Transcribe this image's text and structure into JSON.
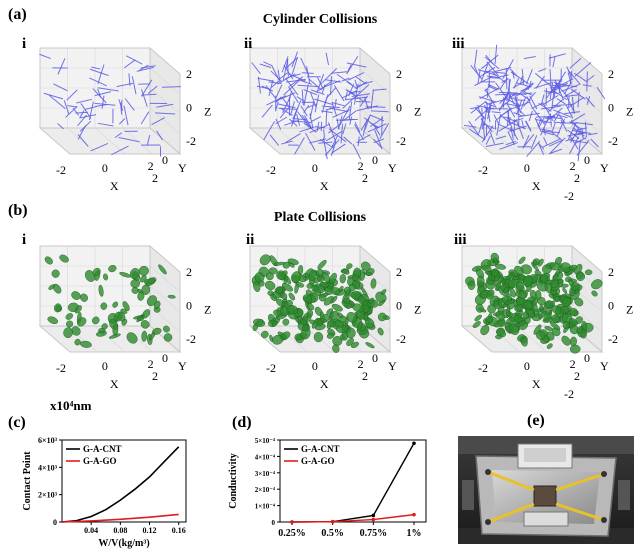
{
  "figure": {
    "panel_a": {
      "label": "(a)",
      "title": "Cylinder Collisions",
      "sub_labels": [
        "i",
        "ii",
        "iii"
      ],
      "axis": {
        "x": "X",
        "y": "Y",
        "z": "Z"
      },
      "x_ticks": [
        "-2",
        "0",
        "2"
      ],
      "y_ticks": [
        "0",
        "2"
      ],
      "y_ticks_iii": [
        "0",
        "2",
        "-2"
      ],
      "z_ticks": [
        "2",
        "0",
        "-2"
      ],
      "color": "#5a5ae6"
    },
    "panel_b": {
      "label": "(b)",
      "title": "Plate Collisions",
      "sub_labels": [
        "i",
        "ii",
        "iii"
      ],
      "axis": {
        "x": "X",
        "y": "Y",
        "z": "Z"
      },
      "x_ticks": [
        "-2",
        "0",
        "2"
      ],
      "y_ticks": [
        "0",
        "2"
      ],
      "y_ticks_iii": [
        "0",
        "2",
        "-2"
      ],
      "z_ticks": [
        "2",
        "0",
        "-2"
      ],
      "color": "#2e8b2e"
    },
    "unit_label": "x10⁴nm",
    "panel_e": {
      "label": "(e)"
    }
  },
  "chart_data": [
    {
      "label": "(c)",
      "type": "line",
      "xlabel": "W/V(kg/m³)",
      "ylabel": "Contact Point",
      "x_ticks": [
        "0.04",
        "0.08",
        "0.12",
        "0.16"
      ],
      "y_ticks": [
        "0",
        "2×10³",
        "4×10³",
        "6×10³"
      ],
      "xlim": [
        0.0,
        0.17
      ],
      "ylim": [
        0,
        6000
      ],
      "legend_position": "top-left",
      "series": [
        {
          "name": "G-A-CNT",
          "color": "#000000",
          "x": [
            0.0,
            0.02,
            0.04,
            0.06,
            0.08,
            0.1,
            0.12,
            0.14,
            0.16
          ],
          "y": [
            0,
            100,
            400,
            900,
            1600,
            2400,
            3300,
            4400,
            5500
          ]
        },
        {
          "name": "G-A-GO",
          "color": "#e41a1c",
          "x": [
            0.0,
            0.04,
            0.08,
            0.12,
            0.16
          ],
          "y": [
            0,
            80,
            200,
            350,
            550
          ]
        }
      ]
    },
    {
      "label": "(d)",
      "type": "line",
      "xlabel": "",
      "ylabel": "Conductivity",
      "categories": [
        "0.25%",
        "0.5%",
        "0.75%",
        "1%"
      ],
      "y_ticks": [
        "0",
        "1×10⁻⁴",
        "2×10⁻⁴",
        "3×10⁻⁴",
        "4×10⁻⁴",
        "5×10⁻⁴"
      ],
      "ylim": [
        0,
        0.0005
      ],
      "legend_position": "top-left",
      "series": [
        {
          "name": "G-A-CNT",
          "color": "#000000",
          "values": [
            0.0,
            2e-06,
            4e-05,
            0.00048
          ]
        },
        {
          "name": "G-A-GO",
          "color": "#e41a1c",
          "values": [
            0.0,
            2e-06,
            1.5e-05,
            4.5e-05
          ]
        }
      ]
    }
  ]
}
